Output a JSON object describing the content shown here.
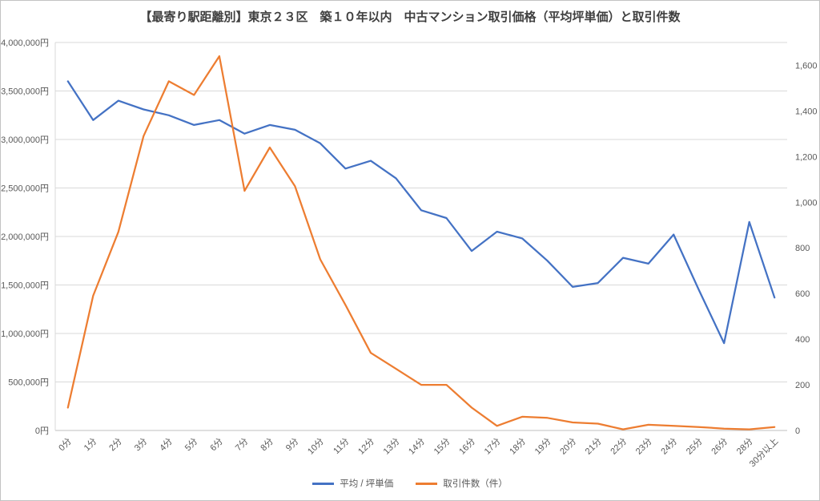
{
  "title": "【最寄り駅距離別】東京２３区　築１０年以内　中古マンション取引価格（平均坪単価）と取引件数",
  "chart_data": {
    "type": "line",
    "categories": [
      "0分",
      "1分",
      "2分",
      "3分",
      "4分",
      "5分",
      "6分",
      "7分",
      "8分",
      "9分",
      "10分",
      "11分",
      "12分",
      "13分",
      "14分",
      "15分",
      "16分",
      "17分",
      "18分",
      "19分",
      "20分",
      "21分",
      "22分",
      "23分",
      "24分",
      "25分",
      "26分",
      "28分",
      "30分以上"
    ],
    "series": [
      {
        "name": "平均 / 坪単価",
        "color": "#4472C4",
        "axis": "left",
        "values": [
          3600000,
          3200000,
          3400000,
          3310000,
          3250000,
          3150000,
          3200000,
          3060000,
          3150000,
          3100000,
          2960000,
          2700000,
          2780000,
          2600000,
          2270000,
          2190000,
          1850000,
          2050000,
          1980000,
          1750000,
          1480000,
          1520000,
          1780000,
          1720000,
          2020000,
          1450000,
          900000,
          2150000,
          1370000
        ]
      },
      {
        "name": "取引件数（件）",
        "color": "#ED7D31",
        "axis": "right",
        "values": [
          100,
          590,
          870,
          1290,
          1530,
          1470,
          1640,
          1050,
          1240,
          1070,
          750,
          550,
          340,
          270,
          200,
          200,
          100,
          20,
          60,
          55,
          35,
          30,
          5,
          25,
          20,
          15,
          8,
          5,
          15
        ]
      }
    ],
    "left_axis": {
      "min": 0,
      "max": 4000000,
      "tick_step": 500000,
      "tick_labels": [
        "0円",
        "500,000円",
        "1,000,000円",
        "1,500,000円",
        "2,000,000円",
        "2,500,000円",
        "3,000,000円",
        "3,500,000円",
        "4,000,000円"
      ]
    },
    "right_axis": {
      "min": 0,
      "max": 1700,
      "tick_values": [
        0,
        200,
        400,
        600,
        800,
        1000,
        1200,
        1400,
        1600
      ],
      "tick_labels": [
        "0",
        "200",
        "400",
        "600",
        "800",
        "1,000",
        "1,200",
        "1,400",
        "1,600"
      ]
    },
    "grid": true,
    "legend_position": "bottom",
    "colors": {
      "gridline": "#D9D9D9",
      "axis_line": "#BFBFBF",
      "tick_text": "#595959"
    }
  }
}
